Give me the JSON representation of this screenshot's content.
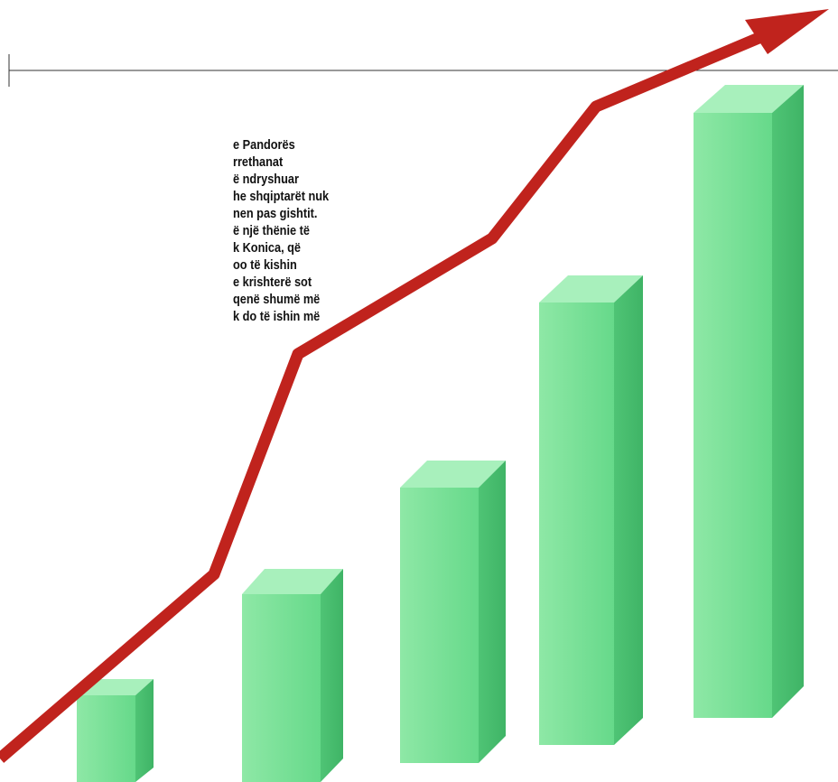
{
  "article": {
    "lines": [
      "e Pandorës",
      "rrethanat",
      "ë ndryshuar",
      "he shqiptarët nuk",
      "nen pas gishtit.",
      "ë një thënie të",
      "k Konica, që",
      "oo të kishin",
      "e krishterë sot",
      "qenë shumë më",
      "k do të ishin më"
    ]
  }
}
